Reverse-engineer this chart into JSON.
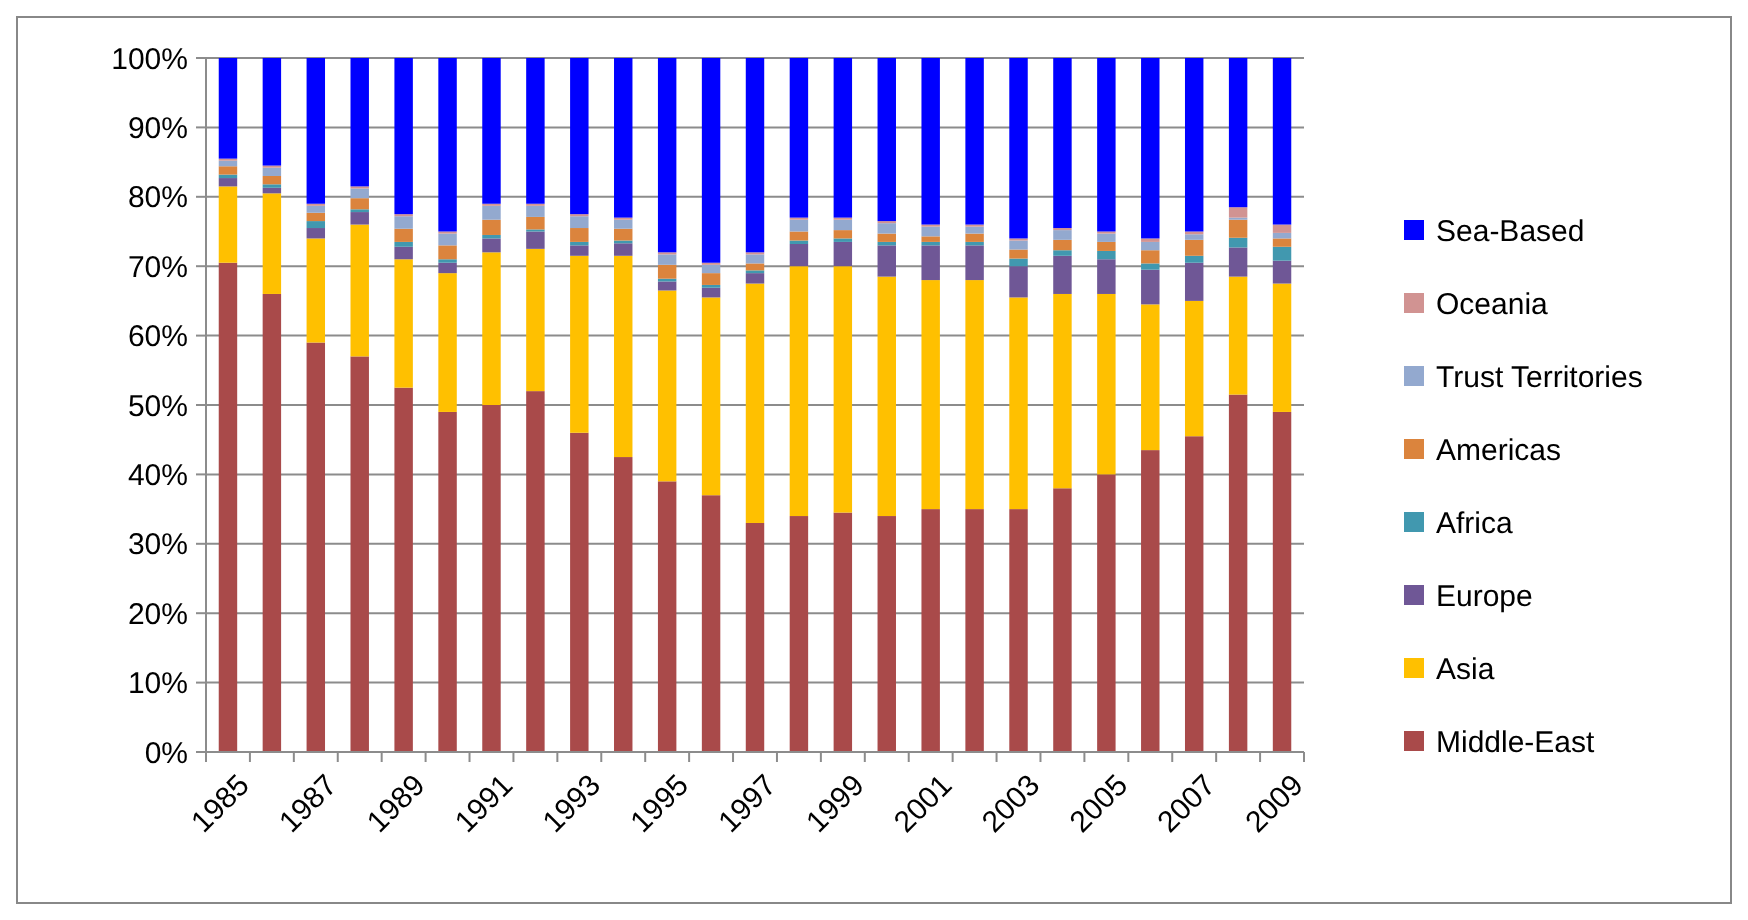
{
  "chart_data": {
    "type": "bar",
    "stacked": true,
    "categories": [
      "1985",
      null,
      "1987",
      null,
      "1989",
      null,
      "1991",
      null,
      "1993",
      null,
      "1995",
      null,
      "1997",
      null,
      "1999",
      null,
      "2001",
      null,
      "2003",
      null,
      "2005",
      null,
      "2007",
      null,
      "2009"
    ],
    "ylim": [
      0,
      100
    ],
    "yticks": [
      {
        "value": 0,
        "label": "0%"
      },
      {
        "value": 10,
        "label": "10%"
      },
      {
        "value": 20,
        "label": "20%"
      },
      {
        "value": 30,
        "label": "30%"
      },
      {
        "value": 40,
        "label": "40%"
      },
      {
        "value": 50,
        "label": "50%"
      },
      {
        "value": 60,
        "label": "60%"
      },
      {
        "value": 70,
        "label": "70%"
      },
      {
        "value": 80,
        "label": "80%"
      },
      {
        "value": 90,
        "label": "90%"
      },
      {
        "value": 100,
        "label": "100%"
      }
    ],
    "grid": "y",
    "legend": "right",
    "series": [
      {
        "name": "Middle-East",
        "color": "#a94a4a",
        "values": [
          70.5,
          66,
          59,
          57,
          52.5,
          49,
          50,
          52,
          46,
          42.5,
          39,
          37,
          33,
          34,
          34.5,
          34,
          35,
          35,
          35,
          38,
          40,
          43.5,
          45.5,
          51.5,
          49
        ]
      },
      {
        "name": "Asia",
        "color": "#ffc000",
        "values": [
          11,
          14.5,
          15,
          19,
          18.5,
          20,
          22,
          20.5,
          25.5,
          29,
          27.5,
          28.5,
          34.5,
          36,
          35.5,
          34.5,
          33,
          33,
          30.5,
          28,
          26,
          21,
          19.5,
          17,
          18.5
        ]
      },
      {
        "name": "Europe",
        "color": "#6f5796",
        "values": [
          1.2,
          0.8,
          1.5,
          1.8,
          1.8,
          1.5,
          2,
          2.5,
          1.5,
          1.8,
          1.3,
          1.4,
          1.5,
          3.2,
          3.5,
          4.5,
          5,
          5,
          4.5,
          5.5,
          5,
          5,
          5.5,
          4.2,
          3.3
        ]
      },
      {
        "name": "Africa",
        "color": "#4198af",
        "values": [
          0.5,
          0.5,
          1,
          0.4,
          0.7,
          0.5,
          0.5,
          0.3,
          0.5,
          0.4,
          0.4,
          0.4,
          0.4,
          0.5,
          0.5,
          0.5,
          0.5,
          0.5,
          1.1,
          0.8,
          1.2,
          0.9,
          1,
          1.4,
          2
        ]
      },
      {
        "name": "Americas",
        "color": "#db843d",
        "values": [
          1.2,
          1.2,
          1.2,
          1.6,
          1.9,
          2,
          2.2,
          1.8,
          2,
          1.7,
          2,
          1.7,
          1,
          1.3,
          1.2,
          1.2,
          0.8,
          1.2,
          1.3,
          1.5,
          1.3,
          1.9,
          2.3,
          2.6,
          1.2
        ]
      },
      {
        "name": "Trust Territories",
        "color": "#93a9cf",
        "values": [
          0.8,
          1.2,
          1,
          1.4,
          1.8,
          1.7,
          2,
          1.6,
          1.7,
          1.3,
          1.5,
          1.2,
          1.3,
          1.7,
          1.5,
          1.5,
          1.4,
          1,
          1.3,
          1.4,
          1.2,
          1.2,
          0.8,
          0.3,
          0.8
        ]
      },
      {
        "name": "Oceania",
        "color": "#d19392",
        "values": [
          0.3,
          0.3,
          0.3,
          0.3,
          0.3,
          0.3,
          0.3,
          0.3,
          0.3,
          0.3,
          0.3,
          0.3,
          0.3,
          0.3,
          0.3,
          0.3,
          0.3,
          0.3,
          0.3,
          0.3,
          0.3,
          0.5,
          0.4,
          1.5,
          1.2
        ]
      },
      {
        "name": "Sea-Based",
        "color": "#0000ff",
        "values": [
          14.5,
          15.5,
          21,
          18.5,
          22.5,
          25,
          21,
          21,
          22.5,
          23,
          28,
          29.5,
          28,
          23,
          23,
          23.5,
          24,
          24,
          26,
          24.5,
          25,
          26,
          25,
          21.5,
          24
        ]
      }
    ]
  }
}
